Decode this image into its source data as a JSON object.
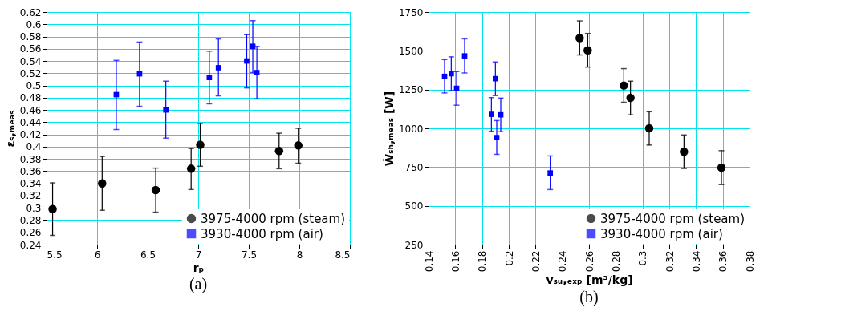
{
  "chart_data": [
    {
      "type": "scatter",
      "xlabel": "rₚ",
      "ylabel": "εₛ,ₘₑₐₛ",
      "annotations": [
        "(a)"
      ],
      "xlim": [
        5.5,
        8.5
      ],
      "xticks": [
        5.5,
        6,
        6.5,
        7,
        7.5,
        8,
        8.5
      ],
      "ylim": [
        0.24,
        0.62
      ],
      "yticks": [
        0.24,
        0.26,
        0.28,
        0.3,
        0.32,
        0.34,
        0.36,
        0.38,
        0.4,
        0.42,
        0.44,
        0.46,
        0.48,
        0.5,
        0.52,
        0.54,
        0.56,
        0.58,
        0.6,
        0.62
      ],
      "grid": true,
      "legend": "bottom right",
      "series": [
        {
          "name": "3975-4000 rpm (steam)",
          "color": "#000000",
          "marker": "circle",
          "x": [
            5.56,
            6.05,
            6.58,
            6.93,
            7.02,
            7.8,
            7.99
          ],
          "values": [
            0.298,
            0.34,
            0.329,
            0.364,
            0.403,
            0.393,
            0.402
          ],
          "errors": [
            [
              0.255,
              0.341
            ],
            [
              0.296,
              0.384
            ],
            [
              0.293,
              0.365
            ],
            [
              0.33,
              0.397
            ],
            [
              0.368,
              0.438
            ],
            [
              0.364,
              0.422
            ],
            [
              0.373,
              0.43
            ]
          ]
        },
        {
          "name": "3930-4000 rpm (air)",
          "color": "#0000ff",
          "marker": "square",
          "x": [
            6.19,
            6.42,
            6.68,
            7.11,
            7.2,
            7.48,
            7.54,
            7.58
          ],
          "values": [
            0.485,
            0.519,
            0.46,
            0.513,
            0.529,
            0.54,
            0.564,
            0.521
          ],
          "errors": [
            [
              0.428,
              0.541
            ],
            [
              0.466,
              0.571
            ],
            [
              0.414,
              0.507
            ],
            [
              0.47,
              0.556
            ],
            [
              0.483,
              0.576
            ],
            [
              0.496,
              0.583
            ],
            [
              0.521,
              0.606
            ],
            [
              0.478,
              0.564
            ]
          ]
        }
      ]
    },
    {
      "type": "scatter",
      "xlabel": "vₛᵤ,ₑₓₚ [m³/kg]",
      "ylabel": "Ẇₛₕ,ₘₑₐₛ [W]",
      "annotations": [
        "(b)"
      ],
      "xlim": [
        0.14,
        0.38
      ],
      "xticks": [
        0.14,
        0.16,
        0.18,
        0.2,
        0.22,
        0.24,
        0.26,
        0.28,
        0.3,
        0.32,
        0.34,
        0.36,
        0.38
      ],
      "ylim": [
        250,
        1750
      ],
      "yticks": [
        250,
        500,
        750,
        1000,
        1250,
        1500,
        1750
      ],
      "grid": true,
      "legend": "bottom right",
      "series": [
        {
          "name": "3975-4000 rpm (steam)",
          "color": "#000000",
          "marker": "circle",
          "x": [
            0.253,
            0.259,
            0.286,
            0.291,
            0.305,
            0.331,
            0.359
          ],
          "values": [
            1582,
            1503,
            1276,
            1196,
            1000,
            849,
            746
          ],
          "errors": [
            [
              1473,
              1693
            ],
            [
              1395,
              1612
            ],
            [
              1168,
              1385
            ],
            [
              1087,
              1304
            ],
            [
              892,
              1107
            ],
            [
              741,
              957
            ],
            [
              637,
              856
            ]
          ]
        },
        {
          "name": "3930-4000 rpm (air)",
          "color": "#0000ff",
          "marker": "square",
          "x": [
            0.152,
            0.157,
            0.161,
            0.167,
            0.187,
            0.19,
            0.191,
            0.194,
            0.231
          ],
          "values": [
            1335,
            1352,
            1258,
            1467,
            1090,
            1320,
            940,
            1087,
            712
          ],
          "errors": [
            [
              1228,
              1443
            ],
            [
              1243,
              1461
            ],
            [
              1149,
              1366
            ],
            [
              1357,
              1577
            ],
            [
              981,
              1198
            ],
            [
              1211,
              1428
            ],
            [
              832,
              1050
            ],
            [
              978,
              1195
            ],
            [
              605,
              822
            ]
          ]
        }
      ]
    }
  ]
}
